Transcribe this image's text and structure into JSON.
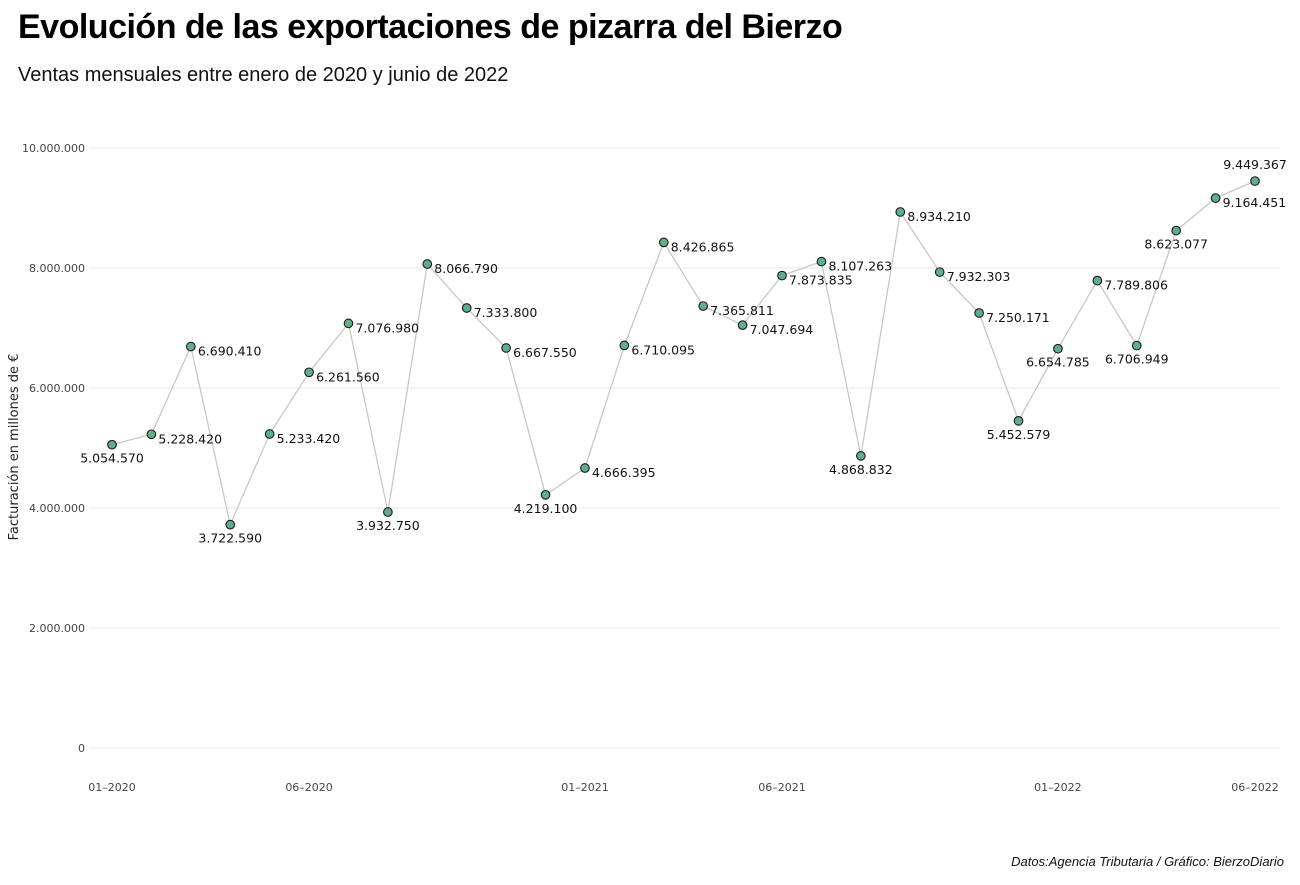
{
  "title": "Evolución de las exportaciones de pizarra del Bierzo",
  "subtitle": "Ventas mensuales entre enero de 2020 y junio de 2022",
  "caption": "Datos:Agencia Tributaria / Gráfico: BierzoDiario",
  "colors": {
    "point_fill": "#5fae8c",
    "point_stroke": "#1a1a1a",
    "line": "#c8c8c8",
    "grid": "#e6e6e6"
  },
  "chart_data": {
    "type": "line",
    "title": "Evolución de las exportaciones de pizarra del Bierzo",
    "subtitle": "Ventas mensuales entre enero de 2020 y junio de 2022",
    "ylabel": "Facturación en millones de €",
    "xlabel": "",
    "ylim": [
      0,
      10000000
    ],
    "y_ticks": [
      0,
      2000000,
      4000000,
      6000000,
      8000000,
      10000000
    ],
    "y_tick_labels": [
      "0",
      "2.000.000",
      "4.000.000",
      "6.000.000",
      "8.000.000",
      "10.000.000"
    ],
    "x_tick_labels": [
      {
        "index": 0,
        "label": "01–2020"
      },
      {
        "index": 5,
        "label": "06–2020"
      },
      {
        "index": 12,
        "label": "01–2021"
      },
      {
        "index": 17,
        "label": "06–2021"
      },
      {
        "index": 24,
        "label": "01–2022"
      },
      {
        "index": 29,
        "label": "06–2022"
      }
    ],
    "grid": true,
    "x": [
      "2020-01",
      "2020-02",
      "2020-03",
      "2020-04",
      "2020-05",
      "2020-06",
      "2020-07",
      "2020-08",
      "2020-09",
      "2020-10",
      "2020-11",
      "2020-12",
      "2021-01",
      "2021-02",
      "2021-03",
      "2021-04",
      "2021-05",
      "2021-06",
      "2021-07",
      "2021-08",
      "2021-09",
      "2021-10",
      "2021-11",
      "2021-12",
      "2022-01",
      "2022-02",
      "2022-03",
      "2022-04",
      "2022-05",
      "2022-06"
    ],
    "values": [
      5054570,
      5228420,
      6690410,
      3722590,
      5233420,
      6261560,
      7076980,
      3932750,
      8066790,
      7333800,
      6667550,
      4219100,
      4666395,
      6710095,
      8426865,
      7365811,
      7047694,
      7873835,
      8107263,
      4868832,
      8934210,
      7932303,
      7250171,
      5452579,
      6654785,
      7789806,
      6706949,
      8623077,
      9164451,
      9449367
    ],
    "data_labels": [
      "5.054.570",
      "5.228.420",
      "6.690.410",
      "3.722.590",
      "5.233.420",
      "6.261.560",
      "7.076.980",
      "3.932.750",
      "8.066.790",
      "7.333.800",
      "6.667.550",
      "4.219.100",
      "4.666.395",
      "6.710.095",
      "8.426.865",
      "7.365.811",
      "7.047.694",
      "7.873.835",
      "8.107.263",
      "4.868.832",
      "8.934.210",
      "7.932.303",
      "7.250.171",
      "5.452.579",
      "6.654.785",
      "7.789.806",
      "6.706.949",
      "8.623.077",
      "9.164.451",
      "9.449.367"
    ],
    "label_positions": [
      "below",
      "right",
      "right",
      "below",
      "right",
      "right",
      "right",
      "below",
      "right",
      "right",
      "right",
      "below",
      "right",
      "right",
      "right",
      "right",
      "right",
      "right",
      "right",
      "below",
      "right",
      "right",
      "right",
      "below",
      "below",
      "right",
      "below",
      "below",
      "right",
      "above"
    ]
  }
}
